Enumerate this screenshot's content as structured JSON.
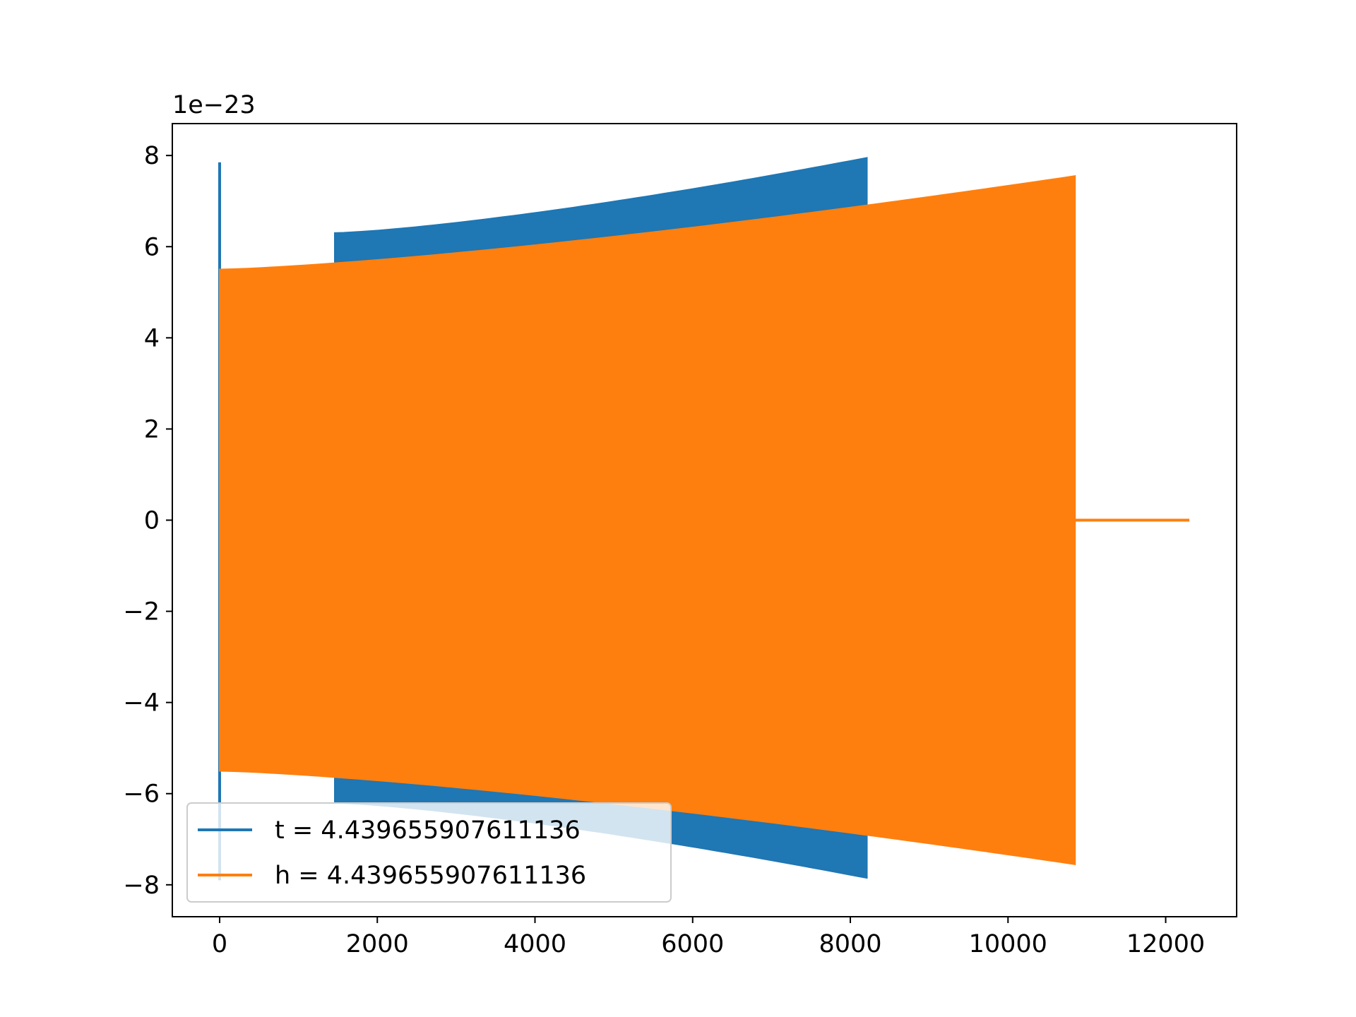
{
  "chart_data": {
    "type": "line",
    "title": "",
    "xlabel": "",
    "ylabel": "",
    "y_offset_label": "1e−23",
    "xlim": [
      -600,
      12900
    ],
    "ylim": [
      -8.7,
      8.7
    ],
    "x_ticks": [
      0,
      2000,
      4000,
      6000,
      8000,
      10000,
      12000
    ],
    "x_tick_labels": [
      "0",
      "2000",
      "4000",
      "6000",
      "8000",
      "10000",
      "12000"
    ],
    "y_ticks": [
      8,
      6,
      4,
      2,
      0,
      -2,
      -4,
      -6,
      -8
    ],
    "y_tick_labels": [
      "8",
      "6",
      "4",
      "2",
      "0",
      "−2",
      "−4",
      "−6",
      "−8"
    ],
    "grid": false,
    "legend_position": "lower-left",
    "series": [
      {
        "name": "t = 4.439655907611136",
        "color": "#1f77b4",
        "spike": {
          "x": 0,
          "y_max": 7.85,
          "y_min": -7.9
        },
        "envelope": {
          "x_start": 1460,
          "x_end": 8210,
          "amp_start": 6.25,
          "amp_end": 7.9,
          "y_offset": 0.05
        }
      },
      {
        "name": "h = 4.439655907611136",
        "color": "#ff7f0e",
        "envelope": {
          "x_start": 0,
          "x_end": 10850,
          "amp_start": 5.5,
          "amp_end": 7.55,
          "y_offset": 0
        },
        "tail": {
          "x_start": 10850,
          "x_end": 12300,
          "y": 0
        }
      }
    ]
  }
}
